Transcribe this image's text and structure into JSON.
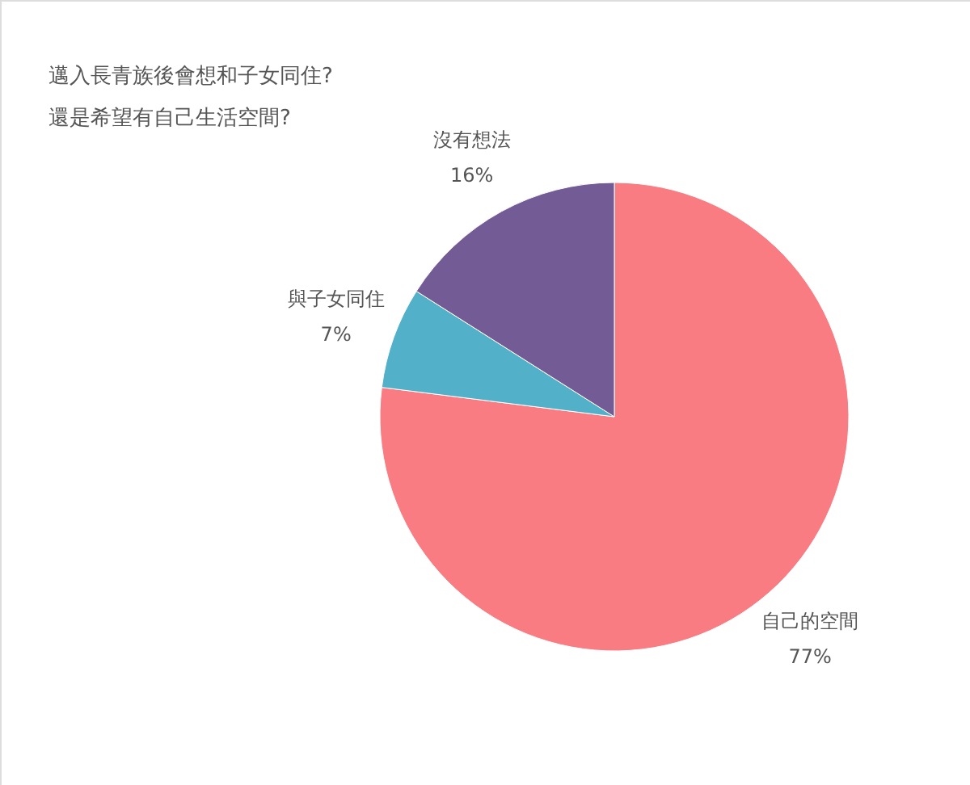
{
  "chart_data": {
    "type": "pie",
    "title": [
      "邁入長青族後會想和子女同住?",
      "還是希望有自己生活空間?"
    ],
    "categories": [
      "自己的空間",
      "與子女同住",
      "沒有想法"
    ],
    "values": [
      77,
      7,
      16
    ],
    "colors": [
      "#f87c82",
      "#52b0c8",
      "#735b96"
    ],
    "value_labels": [
      "77%",
      "7%",
      "16%"
    ],
    "legend": false
  }
}
